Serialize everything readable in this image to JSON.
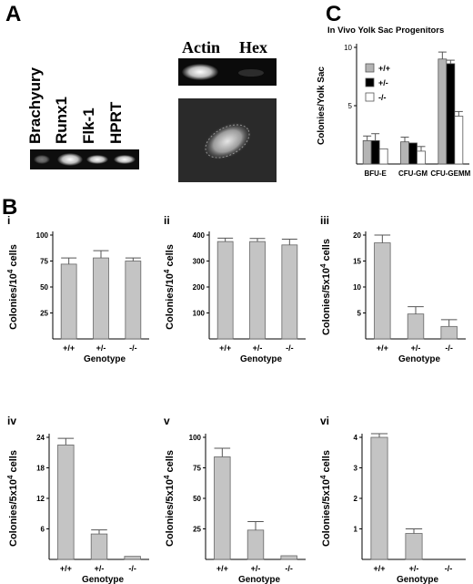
{
  "panel_A": {
    "letter": "A",
    "gel_lanes": [
      "Brachyury",
      "Runx1",
      "Flk-1",
      "HPRT"
    ],
    "gel2_labels": [
      "Actin",
      "Hex"
    ]
  },
  "panel_B": {
    "letter": "B"
  },
  "panel_C": {
    "letter": "C"
  },
  "chart_data": [
    {
      "id": "C",
      "type": "bar",
      "title": "In Vivo Yolk Sac Progenitors",
      "ylabel": "Colonies/Yolk Sac",
      "xlabel": "",
      "categories": [
        "BFU-E",
        "CFU-GM",
        "CFU-GEMM"
      ],
      "ylim": [
        0,
        10
      ],
      "yticks": [
        5,
        10
      ],
      "legend_position": "top-left",
      "series": [
        {
          "name": "+/+",
          "color": "#b4b4b4",
          "values": [
            2.0,
            1.9,
            9.0
          ],
          "errors": [
            0.4,
            0.4,
            0.6
          ]
        },
        {
          "name": "+/-",
          "color": "#000000",
          "values": [
            2.0,
            1.8,
            8.6
          ],
          "errors": [
            0.6,
            0.0,
            0.3
          ]
        },
        {
          "name": "-/-",
          "color": "#ffffff",
          "values": [
            1.3,
            1.1,
            4.1
          ],
          "errors": [
            0.0,
            0.4,
            0.4
          ]
        }
      ]
    },
    {
      "id": "i",
      "type": "bar",
      "panel_label": "i",
      "ylabel_main": "Colonies/10",
      "ylabel_sup": "4",
      "ylabel_end": " cells",
      "xlabel": "Genotype",
      "categories": [
        "+/+",
        "+/-",
        "-/-"
      ],
      "values": [
        72,
        78,
        75
      ],
      "errors": [
        6,
        7,
        3
      ],
      "ylim": [
        0,
        100
      ],
      "yticks": [
        25,
        50,
        75,
        100
      ]
    },
    {
      "id": "ii",
      "type": "bar",
      "panel_label": "ii",
      "ylabel_main": "Colonies/10",
      "ylabel_sup": "4",
      "ylabel_end": " cells",
      "xlabel": "Genotype",
      "categories": [
        "+/+",
        "+/-",
        "-/-"
      ],
      "values": [
        375,
        375,
        362
      ],
      "errors": [
        13,
        12,
        22
      ],
      "ylim": [
        0,
        400
      ],
      "yticks": [
        100,
        200,
        300,
        400
      ]
    },
    {
      "id": "iii",
      "type": "bar",
      "panel_label": "iii",
      "ylabel_main": "Colonies/5x10",
      "ylabel_sup": "4",
      "ylabel_end": " cells",
      "xlabel": "Genotype",
      "categories": [
        "+/+",
        "+/-",
        "-/-"
      ],
      "values": [
        18.5,
        4.8,
        2.4
      ],
      "errors": [
        1.5,
        1.4,
        1.3
      ],
      "ylim": [
        0,
        20
      ],
      "yticks": [
        5,
        10,
        15,
        20
      ]
    },
    {
      "id": "iv",
      "type": "bar",
      "panel_label": "iv",
      "ylabel_main": "Colonies/5x10",
      "ylabel_sup": "4",
      "ylabel_end": " cells",
      "xlabel": "Genotype",
      "categories": [
        "+/+",
        "+/-",
        "-/-"
      ],
      "values": [
        22.5,
        5.0,
        0.6
      ],
      "errors": [
        1.3,
        0.8,
        0.0
      ],
      "ylim": [
        0,
        24
      ],
      "yticks": [
        6,
        12,
        18,
        24
      ]
    },
    {
      "id": "v",
      "type": "bar",
      "panel_label": "v",
      "ylabel_main": "Colonies/5x10",
      "ylabel_sup": "4",
      "ylabel_end": " cells",
      "xlabel": "Genotype",
      "categories": [
        "+/+",
        "+/-",
        "-/-"
      ],
      "values": [
        84,
        24,
        3
      ],
      "errors": [
        7,
        7,
        0
      ],
      "ylim": [
        0,
        100
      ],
      "yticks": [
        25,
        50,
        75,
        100
      ]
    },
    {
      "id": "vi",
      "type": "bar",
      "panel_label": "vi",
      "ylabel_main": "Colonies/5x10",
      "ylabel_sup": "4",
      "ylabel_end": " cells",
      "xlabel": "Genotype",
      "categories": [
        "+/+",
        "+/-",
        "-/-"
      ],
      "values": [
        4.0,
        0.85,
        0
      ],
      "errors": [
        0.12,
        0.15,
        0
      ],
      "ylim": [
        0,
        4
      ],
      "yticks": [
        1,
        2,
        3,
        4
      ]
    }
  ]
}
